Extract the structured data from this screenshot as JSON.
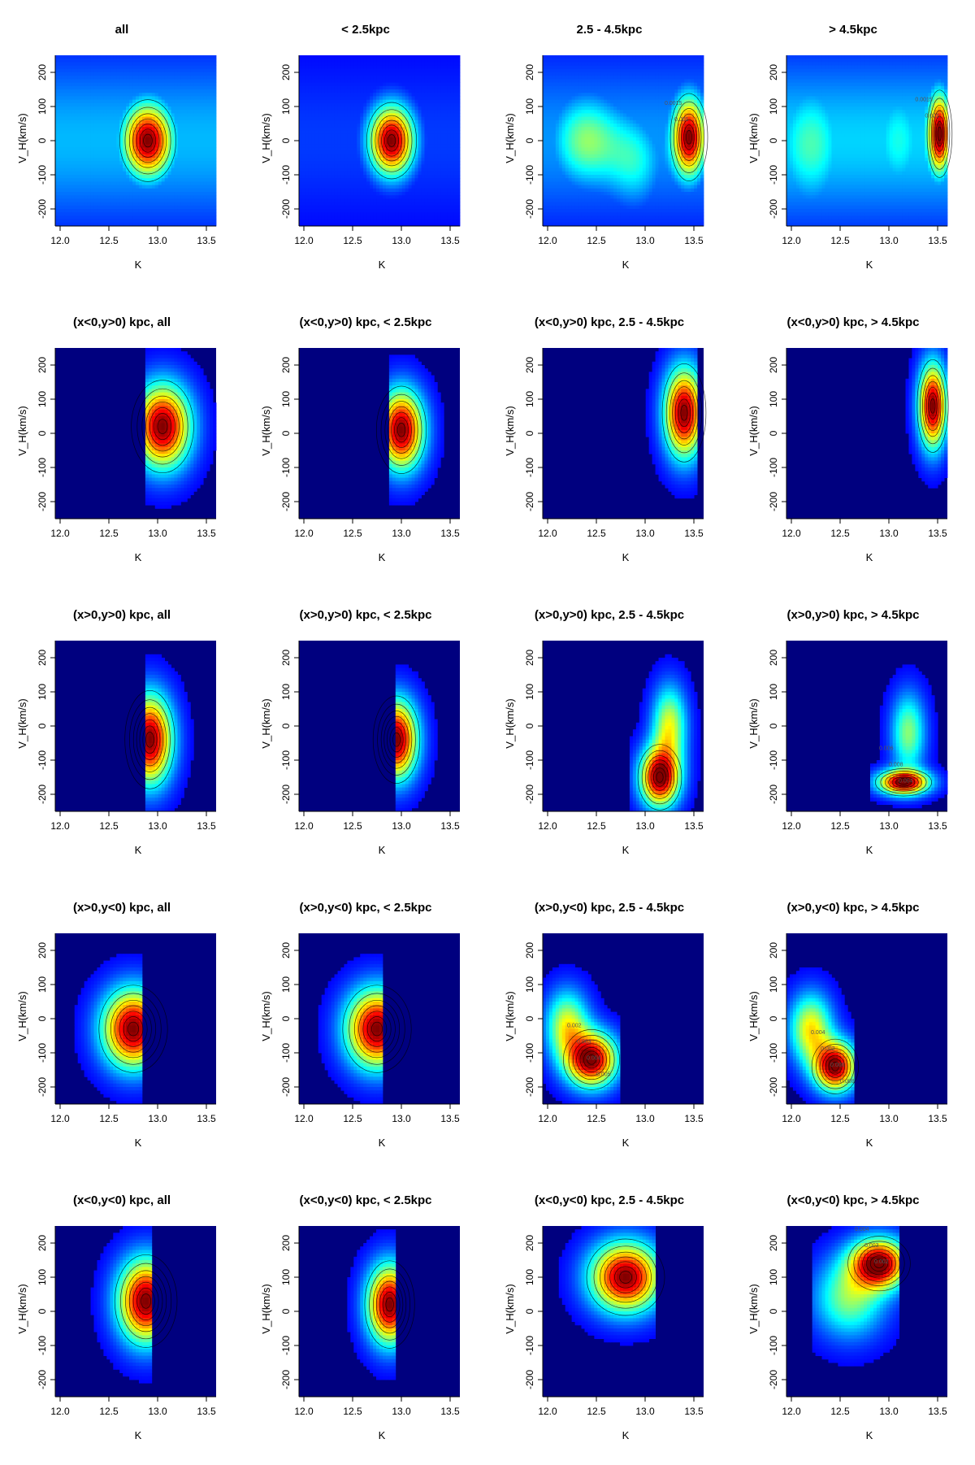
{
  "chart_data": {
    "type": "heatmap",
    "layout": "5x4 grid of 2D density maps with contour lines",
    "xlabel": "K",
    "ylabel": "V_H(km/s)",
    "xlim": [
      11.95,
      13.6
    ],
    "ylim": [
      -250,
      250
    ],
    "xticks": [
      "12.0",
      "12.5",
      "13.0",
      "13.5"
    ],
    "yticks": [
      "-200",
      "-100",
      "0",
      "100",
      "200"
    ],
    "colormap": [
      "#00007f",
      "#0000ff",
      "#007fff",
      "#00ffff",
      "#7fff7f",
      "#ffff00",
      "#ff7f00",
      "#ff0000",
      "#7f0000"
    ],
    "panels": [
      {
        "title": "all",
        "peaks": [
          {
            "x": 12.9,
            "y": 0,
            "sx": 0.18,
            "sy": 75,
            "w": 1.0
          }
        ],
        "base": 0.22,
        "floor": [
          11.95,
          13.6
        ]
      },
      {
        "title": "< 2.5kpc",
        "peaks": [
          {
            "x": 12.9,
            "y": 0,
            "sx": 0.16,
            "sy": 70,
            "w": 1.0
          }
        ],
        "base": 0.08,
        "floor": [
          11.95,
          13.6
        ]
      },
      {
        "title": "2.5 - 4.5kpc",
        "peaks": [
          {
            "x": 13.45,
            "y": 10,
            "sx": 0.12,
            "sy": 80,
            "w": 1.0
          },
          {
            "x": 12.4,
            "y": 0,
            "sx": 0.25,
            "sy": 90,
            "w": 0.45
          },
          {
            "x": 12.9,
            "y": -60,
            "sx": 0.2,
            "sy": 90,
            "w": 0.3
          }
        ],
        "base": 0.18,
        "floor": [
          11.95,
          13.6
        ],
        "labels": [
          "0.0015",
          "0.001"
        ]
      },
      {
        "title": "> 4.5kpc",
        "peaks": [
          {
            "x": 13.52,
            "y": 20,
            "sx": 0.08,
            "sy": 80,
            "w": 1.0
          },
          {
            "x": 12.2,
            "y": -10,
            "sx": 0.25,
            "sy": 120,
            "w": 0.38
          },
          {
            "x": 13.1,
            "y": 0,
            "sx": 0.2,
            "sy": 110,
            "w": 0.32
          }
        ],
        "base": 0.25,
        "floor": [
          11.95,
          13.6
        ],
        "labels": [
          "0.0015",
          "0.001"
        ]
      },
      {
        "title": "(x<0,y>0) kpc, all",
        "peaks": [
          {
            "x": 13.05,
            "y": 20,
            "sx": 0.2,
            "sy": 85,
            "w": 1.0
          }
        ],
        "base": 0.0,
        "floor": [
          12.88,
          13.6
        ]
      },
      {
        "title": "(x<0,y>0) kpc, < 2.5kpc",
        "peaks": [
          {
            "x": 13.0,
            "y": 10,
            "sx": 0.16,
            "sy": 80,
            "w": 1.0
          }
        ],
        "base": 0.0,
        "floor": [
          12.88,
          13.6
        ]
      },
      {
        "title": "(x<0,y>0) kpc, 2.5 - 4.5kpc",
        "peaks": [
          {
            "x": 13.4,
            "y": 60,
            "sx": 0.14,
            "sy": 90,
            "w": 1.0
          }
        ],
        "base": 0.0,
        "floor": [
          13.0,
          13.55
        ]
      },
      {
        "title": "(x<0,y>0) kpc, > 4.5kpc",
        "peaks": [
          {
            "x": 13.45,
            "y": 80,
            "sx": 0.1,
            "sy": 85,
            "w": 1.0
          }
        ],
        "base": 0.0,
        "floor": [
          13.15,
          13.6
        ]
      },
      {
        "title": "(x>0,y>0) kpc, all",
        "peaks": [
          {
            "x": 12.92,
            "y": -40,
            "sx": 0.16,
            "sy": 90,
            "w": 1.0
          }
        ],
        "base": 0.0,
        "floor": [
          12.88,
          13.6
        ]
      },
      {
        "title": "(x>0,y>0) kpc, < 2.5kpc",
        "peaks": [
          {
            "x": 12.95,
            "y": -40,
            "sx": 0.15,
            "sy": 80,
            "w": 1.0
          }
        ],
        "base": 0.0,
        "floor": [
          12.93,
          13.6
        ]
      },
      {
        "title": "(x>0,y>0) kpc, 2.5 - 4.5kpc",
        "peaks": [
          {
            "x": 13.15,
            "y": -150,
            "sx": 0.14,
            "sy": 60,
            "w": 1.0
          },
          {
            "x": 13.25,
            "y": 0,
            "sx": 0.12,
            "sy": 80,
            "w": 0.55
          }
        ],
        "base": 0.0,
        "floor": [
          12.85,
          13.6
        ]
      },
      {
        "title": "(x>0,y>0) kpc, > 4.5kpc",
        "peaks": [
          {
            "x": 13.15,
            "y": -165,
            "sx": 0.18,
            "sy": 25,
            "w": 1.0
          },
          {
            "x": 13.2,
            "y": -20,
            "sx": 0.12,
            "sy": 80,
            "w": 0.45
          }
        ],
        "base": 0.0,
        "floor": [
          12.8,
          13.6
        ],
        "labels": [
          "0.006",
          "0.008",
          "0.004"
        ]
      },
      {
        "title": "(x>0,y<0) kpc, all",
        "peaks": [
          {
            "x": 12.75,
            "y": -30,
            "sx": 0.22,
            "sy": 80,
            "w": 1.0
          }
        ],
        "base": 0.0,
        "floor": [
          11.95,
          12.85
        ]
      },
      {
        "title": "(x>0,y<0) kpc, < 2.5kpc",
        "peaks": [
          {
            "x": 12.75,
            "y": -30,
            "sx": 0.22,
            "sy": 80,
            "w": 1.0
          }
        ],
        "base": 0.0,
        "floor": [
          11.95,
          12.82
        ]
      },
      {
        "title": "(x>0,y<0) kpc, 2.5 - 4.5kpc",
        "peaks": [
          {
            "x": 12.45,
            "y": -120,
            "sx": 0.18,
            "sy": 55,
            "w": 1.0
          },
          {
            "x": 12.2,
            "y": -20,
            "sx": 0.15,
            "sy": 70,
            "w": 0.55
          }
        ],
        "base": 0.0,
        "floor": [
          11.95,
          12.75
        ],
        "labels": [
          "0.002",
          "0.003",
          "0.004",
          "0.005"
        ]
      },
      {
        "title": "(x>0,y<0) kpc, > 4.5kpc",
        "peaks": [
          {
            "x": 12.45,
            "y": -140,
            "sx": 0.15,
            "sy": 50,
            "w": 1.0
          },
          {
            "x": 12.2,
            "y": -30,
            "sx": 0.15,
            "sy": 70,
            "w": 0.6
          }
        ],
        "base": 0.0,
        "floor": [
          11.95,
          12.65
        ],
        "labels": [
          "0.004",
          "0.002",
          "0.006",
          "0.008"
        ]
      },
      {
        "title": "(x<0,y<0) kpc, all",
        "peaks": [
          {
            "x": 12.88,
            "y": 30,
            "sx": 0.2,
            "sy": 85,
            "w": 1.0
          }
        ],
        "base": 0.0,
        "floor": [
          11.95,
          12.95
        ]
      },
      {
        "title": "(x<0,y<0) kpc, < 2.5kpc",
        "peaks": [
          {
            "x": 12.88,
            "y": 20,
            "sx": 0.16,
            "sy": 80,
            "w": 1.0
          }
        ],
        "base": 0.0,
        "floor": [
          11.95,
          12.95
        ]
      },
      {
        "title": "(x<0,y<0) kpc, 2.5 - 4.5kpc",
        "peaks": [
          {
            "x": 12.8,
            "y": 100,
            "sx": 0.25,
            "sy": 70,
            "w": 1.0
          }
        ],
        "base": 0.0,
        "floor": [
          12.0,
          13.1
        ]
      },
      {
        "title": "(x<0,y<0) kpc, > 4.5kpc",
        "peaks": [
          {
            "x": 12.9,
            "y": 140,
            "sx": 0.2,
            "sy": 50,
            "w": 1.0
          },
          {
            "x": 12.6,
            "y": 40,
            "sx": 0.25,
            "sy": 80,
            "w": 0.45
          }
        ],
        "base": 0.0,
        "floor": [
          12.2,
          13.1
        ],
        "labels": [
          "0.004",
          "0.003",
          "0.002"
        ]
      }
    ]
  }
}
